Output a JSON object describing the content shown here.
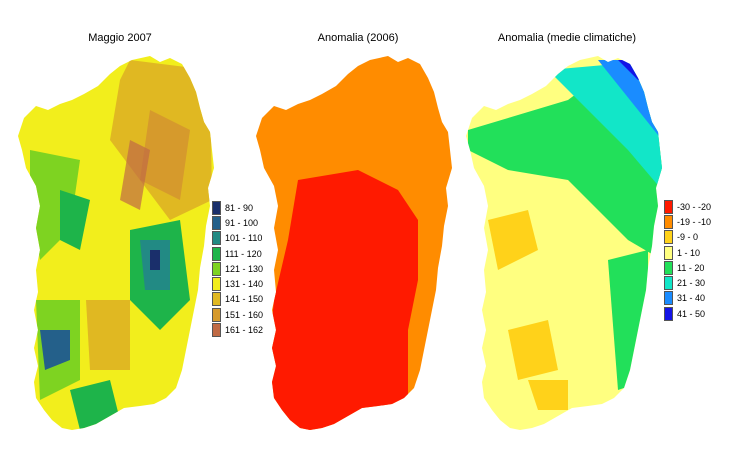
{
  "maps": [
    {
      "title": "Maggio 2007",
      "legend": [
        {
          "label": "81 - 90",
          "color": "#1a2f6b"
        },
        {
          "label": "91 - 100",
          "color": "#24608a"
        },
        {
          "label": "101 - 110",
          "color": "#228a84"
        },
        {
          "label": "111 - 120",
          "color": "#1eb44a"
        },
        {
          "label": "121 - 130",
          "color": "#7ed321"
        },
        {
          "label": "131 - 140",
          "color": "#f2ee1c"
        },
        {
          "label": "141 - 150",
          "color": "#e0b822"
        },
        {
          "label": "151 - 160",
          "color": "#d69a2c"
        },
        {
          "label": "161 - 162",
          "color": "#c06a44"
        }
      ]
    },
    {
      "title": "Anomalia (2006)",
      "legend": []
    },
    {
      "title": "Anomalia (medie climatiche)",
      "legend": [
        {
          "label": "-30 - -20",
          "color": "#ff1a00"
        },
        {
          "label": "-19 - -10",
          "color": "#ff8c00"
        },
        {
          "label": "-9 - 0",
          "color": "#ffd21a"
        },
        {
          "label": "1 - 10",
          "color": "#ffff80"
        },
        {
          "label": "11 - 20",
          "color": "#22e05a"
        },
        {
          "label": "21 - 30",
          "color": "#12e6c8"
        },
        {
          "label": "31 - 40",
          "color": "#1a8cff"
        },
        {
          "label": "41 - 50",
          "color": "#1414e6"
        }
      ]
    }
  ]
}
